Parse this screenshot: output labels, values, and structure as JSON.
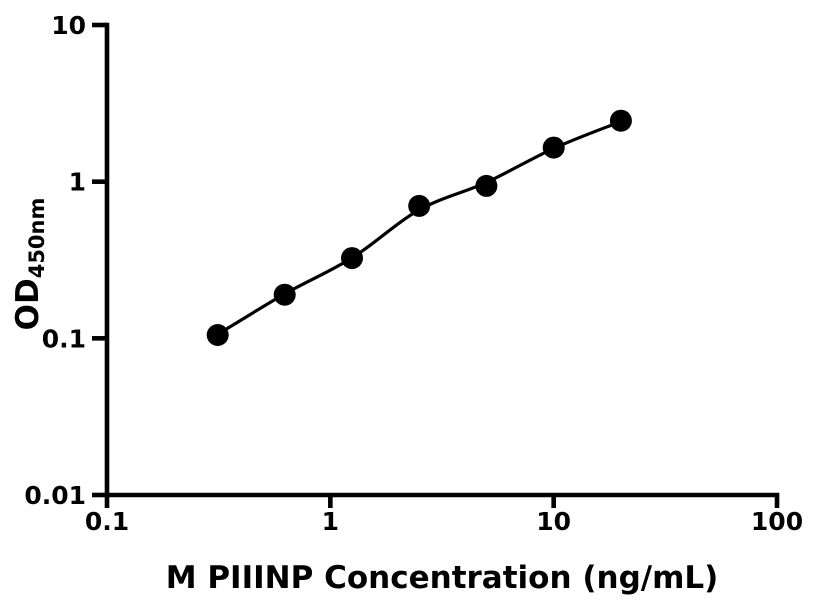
{
  "style": {
    "ink": "#000000",
    "background": "#ffffff"
  },
  "chart_data": {
    "type": "scatter",
    "title": "",
    "xlabel": "M PIIINP Concentration (ng/mL)",
    "ylabel_base": "OD",
    "ylabel_sub": "450nm",
    "x_scale": "log",
    "y_scale": "log",
    "xlim": [
      0.1,
      100
    ],
    "ylim": [
      0.01,
      10
    ],
    "grid": false,
    "legend": false,
    "x_ticks": [
      {
        "v": 0.1,
        "label": "0.1"
      },
      {
        "v": 1,
        "label": "1"
      },
      {
        "v": 10,
        "label": "10"
      },
      {
        "v": 100,
        "label": "100"
      }
    ],
    "y_ticks": [
      {
        "v": 0.01,
        "label": "0.01"
      },
      {
        "v": 0.1,
        "label": "0.1"
      },
      {
        "v": 1,
        "label": "1"
      },
      {
        "v": 10,
        "label": "10"
      }
    ],
    "series": [
      {
        "name": "standard-points",
        "type": "scatter",
        "marker": "circle",
        "color": "#000000",
        "x": [
          0.313,
          0.625,
          1.25,
          2.5,
          5,
          10,
          20
        ],
        "y": [
          0.105,
          0.19,
          0.325,
          0.7,
          0.94,
          1.65,
          2.45
        ]
      },
      {
        "name": "fit-curve",
        "type": "line",
        "color": "#000000",
        "x": [
          0.313,
          0.625,
          1.25,
          2.5,
          5,
          10,
          20
        ],
        "y": [
          0.106,
          0.192,
          0.326,
          0.66,
          0.99,
          1.63,
          2.42
        ]
      }
    ]
  }
}
